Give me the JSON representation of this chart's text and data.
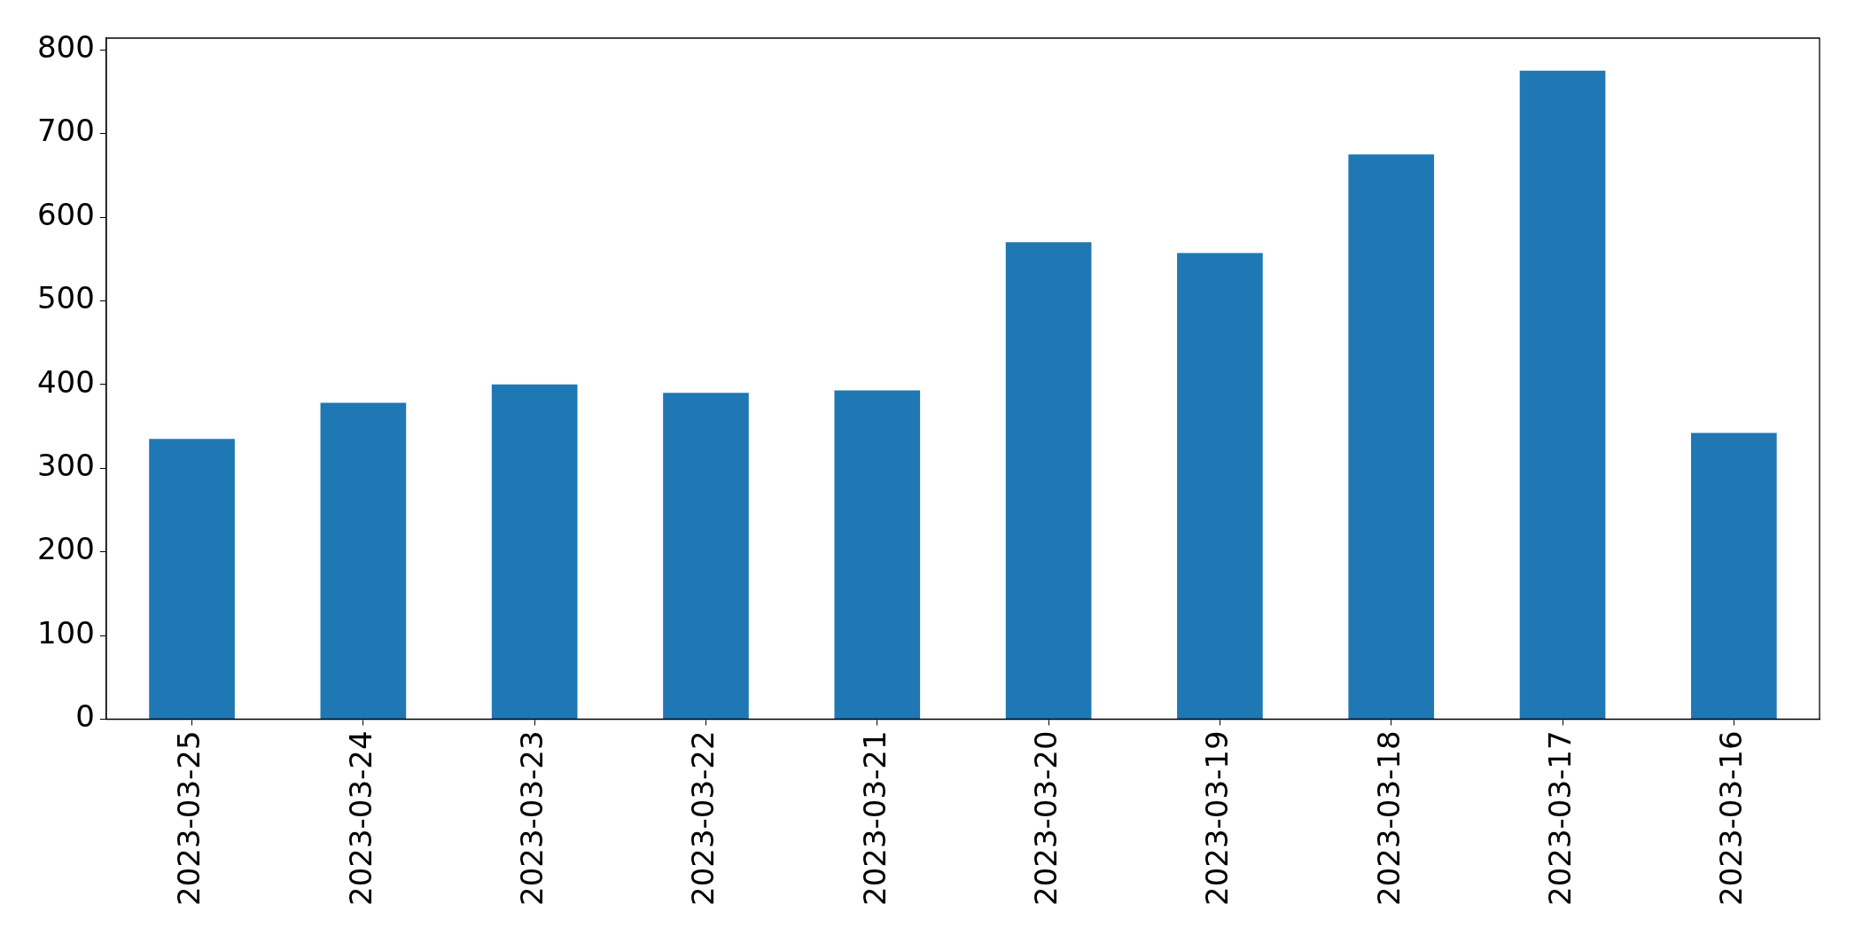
{
  "chart_data": {
    "type": "bar",
    "categories": [
      "2023-03-25",
      "2023-03-24",
      "2023-03-23",
      "2023-03-22",
      "2023-03-21",
      "2023-03-20",
      "2023-03-19",
      "2023-03-18",
      "2023-03-17",
      "2023-03-16"
    ],
    "values": [
      335,
      378,
      400,
      390,
      393,
      570,
      557,
      675,
      775,
      342
    ],
    "color": "#1f77b4",
    "ylim": [
      0,
      814
    ],
    "yticks": [
      0,
      100,
      200,
      300,
      400,
      500,
      600,
      700,
      800
    ]
  }
}
